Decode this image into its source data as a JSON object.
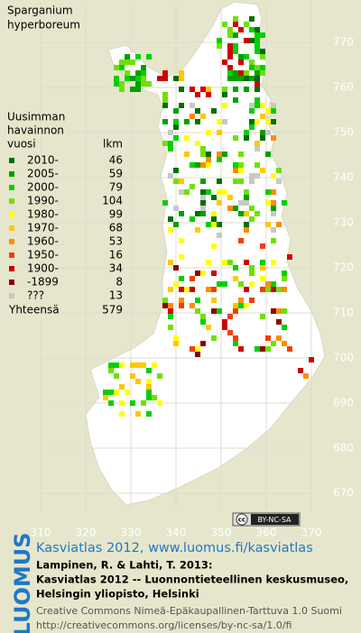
{
  "title": [
    "Sparganium",
    "hyperboreum"
  ],
  "legend": {
    "heading": [
      "Uusimman",
      "havainnon",
      "vuosi"
    ],
    "count_heading": "lkm",
    "classes": [
      {
        "label": "2010-",
        "count": 46,
        "color": "#006e00"
      },
      {
        "label": "2005-",
        "count": 59,
        "color": "#00a000"
      },
      {
        "label": "2000-",
        "count": 79,
        "color": "#00d000"
      },
      {
        "label": "1990-",
        "count": 104,
        "color": "#70e000"
      },
      {
        "label": "1980-",
        "count": 99,
        "color": "#ffff00"
      },
      {
        "label": "1970-",
        "count": 68,
        "color": "#ffc800"
      },
      {
        "label": "1960-",
        "count": 53,
        "color": "#ff8c00"
      },
      {
        "label": "1950-",
        "count": 16,
        "color": "#f04000"
      },
      {
        "label": "1900-",
        "count": 34,
        "color": "#d00000"
      },
      {
        "label": "-1899",
        "count": 8,
        "color": "#8c0000"
      },
      {
        "label": "???",
        "count": 13,
        "color": "#c8c8c8"
      }
    ],
    "total": {
      "label": "Yhteensä",
      "count": 579
    }
  },
  "map": {
    "northing_ticks": [
      770,
      760,
      750,
      740,
      730,
      720,
      710,
      700,
      690,
      680,
      670
    ],
    "easting_ticks": [
      310,
      320,
      330,
      340,
      350,
      360,
      370
    ]
  },
  "license_badge": {
    "cc": "cc",
    "terms": "BY-NC-SA"
  },
  "credits": {
    "link": "Kasviatlas 2012, www.luomus.fi/kasviatlas",
    "citation": [
      "Lampinen, R. & Lahti, T. 2013:",
      "Kasviatlas 2012 -- Luonnontieteellinen keskusmuseo,",
      "Helsingin yliopisto, Helsinki"
    ],
    "license": [
      "Creative Commons Nimeä-Epäkaupallinen-Tarttuva 1.0 Suomi",
      "http://creativecommons.org/licenses/by-nc-sa/1.0/fi"
    ]
  },
  "brand": "LUOMUS"
}
